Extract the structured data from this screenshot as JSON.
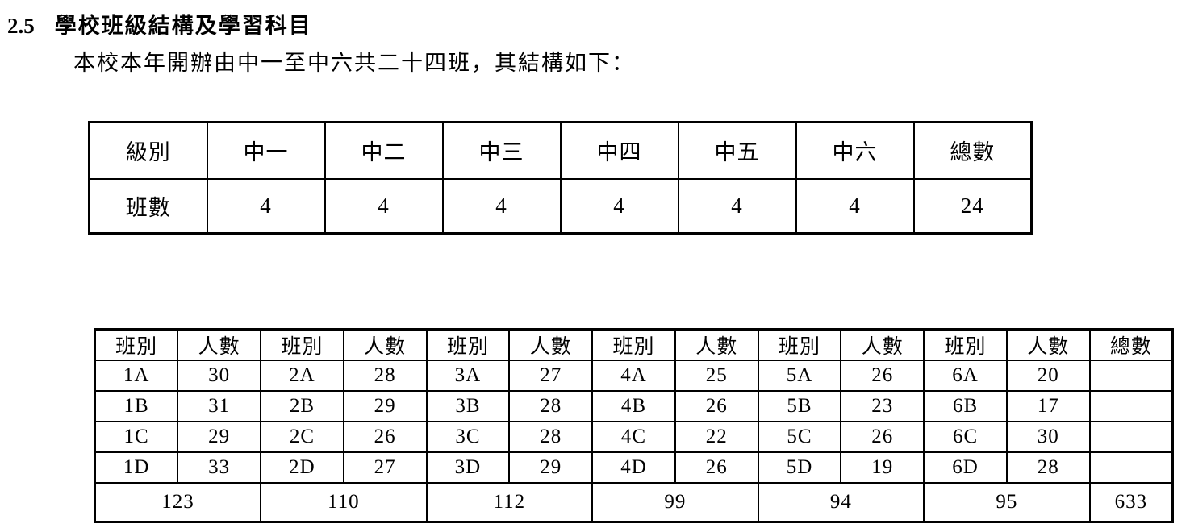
{
  "page": {
    "section_number": "2.5",
    "section_title": "學校班級結構及學習科目",
    "intro_text": "本校本年開辦由中一至中六共二十四班，其結構如下："
  },
  "colors": {
    "text": "#000000",
    "background": "#ffffff",
    "table_border": "#000000"
  },
  "structure_table": {
    "header_row": [
      "級別",
      "中一",
      "中二",
      "中三",
      "中四",
      "中五",
      "中六",
      "總數"
    ],
    "row_label": "班數",
    "values": [
      "4",
      "4",
      "4",
      "4",
      "4",
      "4",
      "24"
    ]
  },
  "class_table": {
    "header_row": [
      "班別",
      "人數",
      "班別",
      "人數",
      "班別",
      "人數",
      "班別",
      "人數",
      "班別",
      "人數",
      "班別",
      "人數",
      "總數"
    ],
    "rows": [
      [
        "1A",
        "30",
        "2A",
        "28",
        "3A",
        "27",
        "4A",
        "25",
        "5A",
        "26",
        "6A",
        "20",
        ""
      ],
      [
        "1B",
        "31",
        "2B",
        "29",
        "3B",
        "28",
        "4B",
        "26",
        "5B",
        "23",
        "6B",
        "17",
        ""
      ],
      [
        "1C",
        "29",
        "2C",
        "26",
        "3C",
        "28",
        "4C",
        "22",
        "5C",
        "26",
        "6C",
        "30",
        ""
      ],
      [
        "1D",
        "33",
        "2D",
        "27",
        "3D",
        "29",
        "4D",
        "26",
        "5D",
        "19",
        "6D",
        "28",
        ""
      ]
    ],
    "totals_row": [
      "123",
      "110",
      "112",
      "99",
      "94",
      "95",
      "633"
    ]
  }
}
